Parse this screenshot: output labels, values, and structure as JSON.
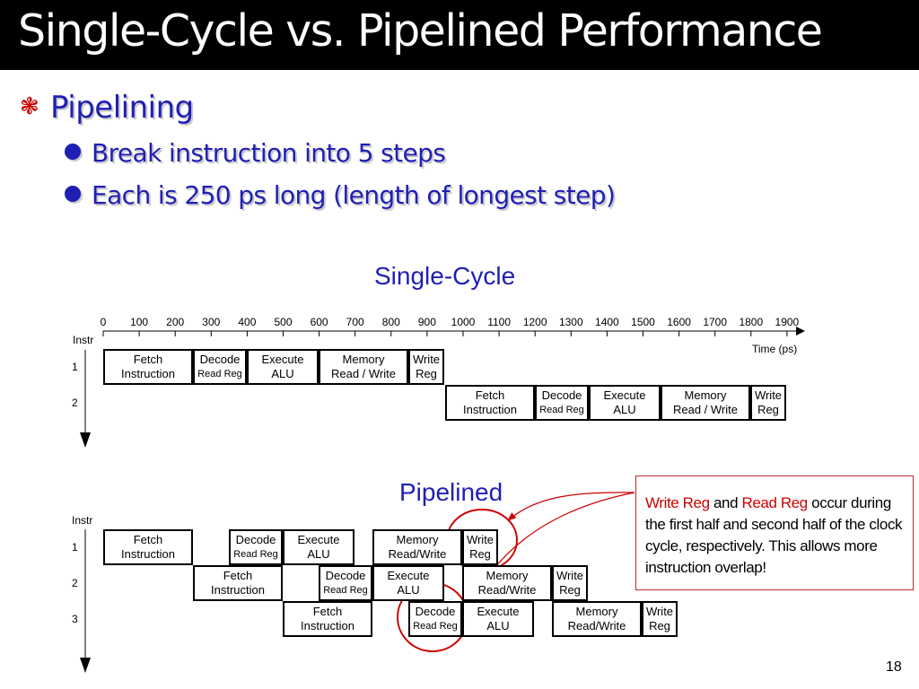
{
  "title": "Single-Cycle vs. Pipelined Performance",
  "bullet": "Pipelining",
  "sub_bullets": [
    "Break instruction into 5 steps",
    "Each is 250 ps long (length of longest step)"
  ],
  "single_cycle": {
    "heading": "Single-Cycle",
    "axis_ticks": [
      "0",
      "100",
      "200",
      "300",
      "400",
      "500",
      "600",
      "700",
      "800",
      "900",
      "1000",
      "1100",
      "1200",
      "1300",
      "1400",
      "1500",
      "1600",
      "1700",
      "1800",
      "1900"
    ],
    "axis_label": "Time (ps)",
    "instr_label": "Instr",
    "rows": [
      {
        "num": "1",
        "stages": [
          {
            "l1": "Fetch",
            "l2": "Instruction"
          },
          {
            "l1": "Decode",
            "l2": "Read Reg"
          },
          {
            "l1": "Execute",
            "l2": "ALU"
          },
          {
            "l1": "Memory",
            "l2": "Read / Write"
          },
          {
            "l1": "Write",
            "l2": "Reg"
          }
        ]
      },
      {
        "num": "2",
        "stages": [
          {
            "l1": "Fetch",
            "l2": "Instruction"
          },
          {
            "l1": "Decode",
            "l2": "Read Reg"
          },
          {
            "l1": "Execute",
            "l2": "ALU"
          },
          {
            "l1": "Memory",
            "l2": "Read / Write"
          },
          {
            "l1": "Write",
            "l2": "Reg"
          }
        ]
      }
    ]
  },
  "pipelined": {
    "heading": "Pipelined",
    "instr_label": "Instr",
    "rows": [
      {
        "num": "1",
        "stages": [
          {
            "l1": "Fetch",
            "l2": "Instruction"
          },
          {
            "l1": "Decode",
            "l2": "Read Reg"
          },
          {
            "l1": "Execute",
            "l2": "ALU"
          },
          {
            "l1": "Memory",
            "l2": "Read/Write"
          },
          {
            "l1": "Write",
            "l2": "Reg"
          }
        ]
      },
      {
        "num": "2",
        "stages": [
          {
            "l1": "Fetch",
            "l2": "Instruction"
          },
          {
            "l1": "Decode",
            "l2": "Read Reg"
          },
          {
            "l1": "Execute",
            "l2": "ALU"
          },
          {
            "l1": "Memory",
            "l2": "Read/Write"
          },
          {
            "l1": "Write",
            "l2": "Reg"
          }
        ]
      },
      {
        "num": "3",
        "stages": [
          {
            "l1": "Fetch",
            "l2": "Instruction"
          },
          {
            "l1": "Decode",
            "l2": "Read Reg"
          },
          {
            "l1": "Execute",
            "l2": "ALU"
          },
          {
            "l1": "Memory",
            "l2": "Read/Write"
          },
          {
            "l1": "Write",
            "l2": "Reg"
          }
        ]
      }
    ]
  },
  "callout": {
    "hl1": "Write Reg",
    "t1": " and ",
    "hl2": "Read Reg",
    "t2": " occur during the first half and second half of the clock cycle, respectively.  This allows more instruction overlap!"
  },
  "page_number": "18",
  "colors": {
    "heading_blue": "#1f1fb4",
    "accent_red": "#cc0000",
    "title_bar": "#000000"
  }
}
